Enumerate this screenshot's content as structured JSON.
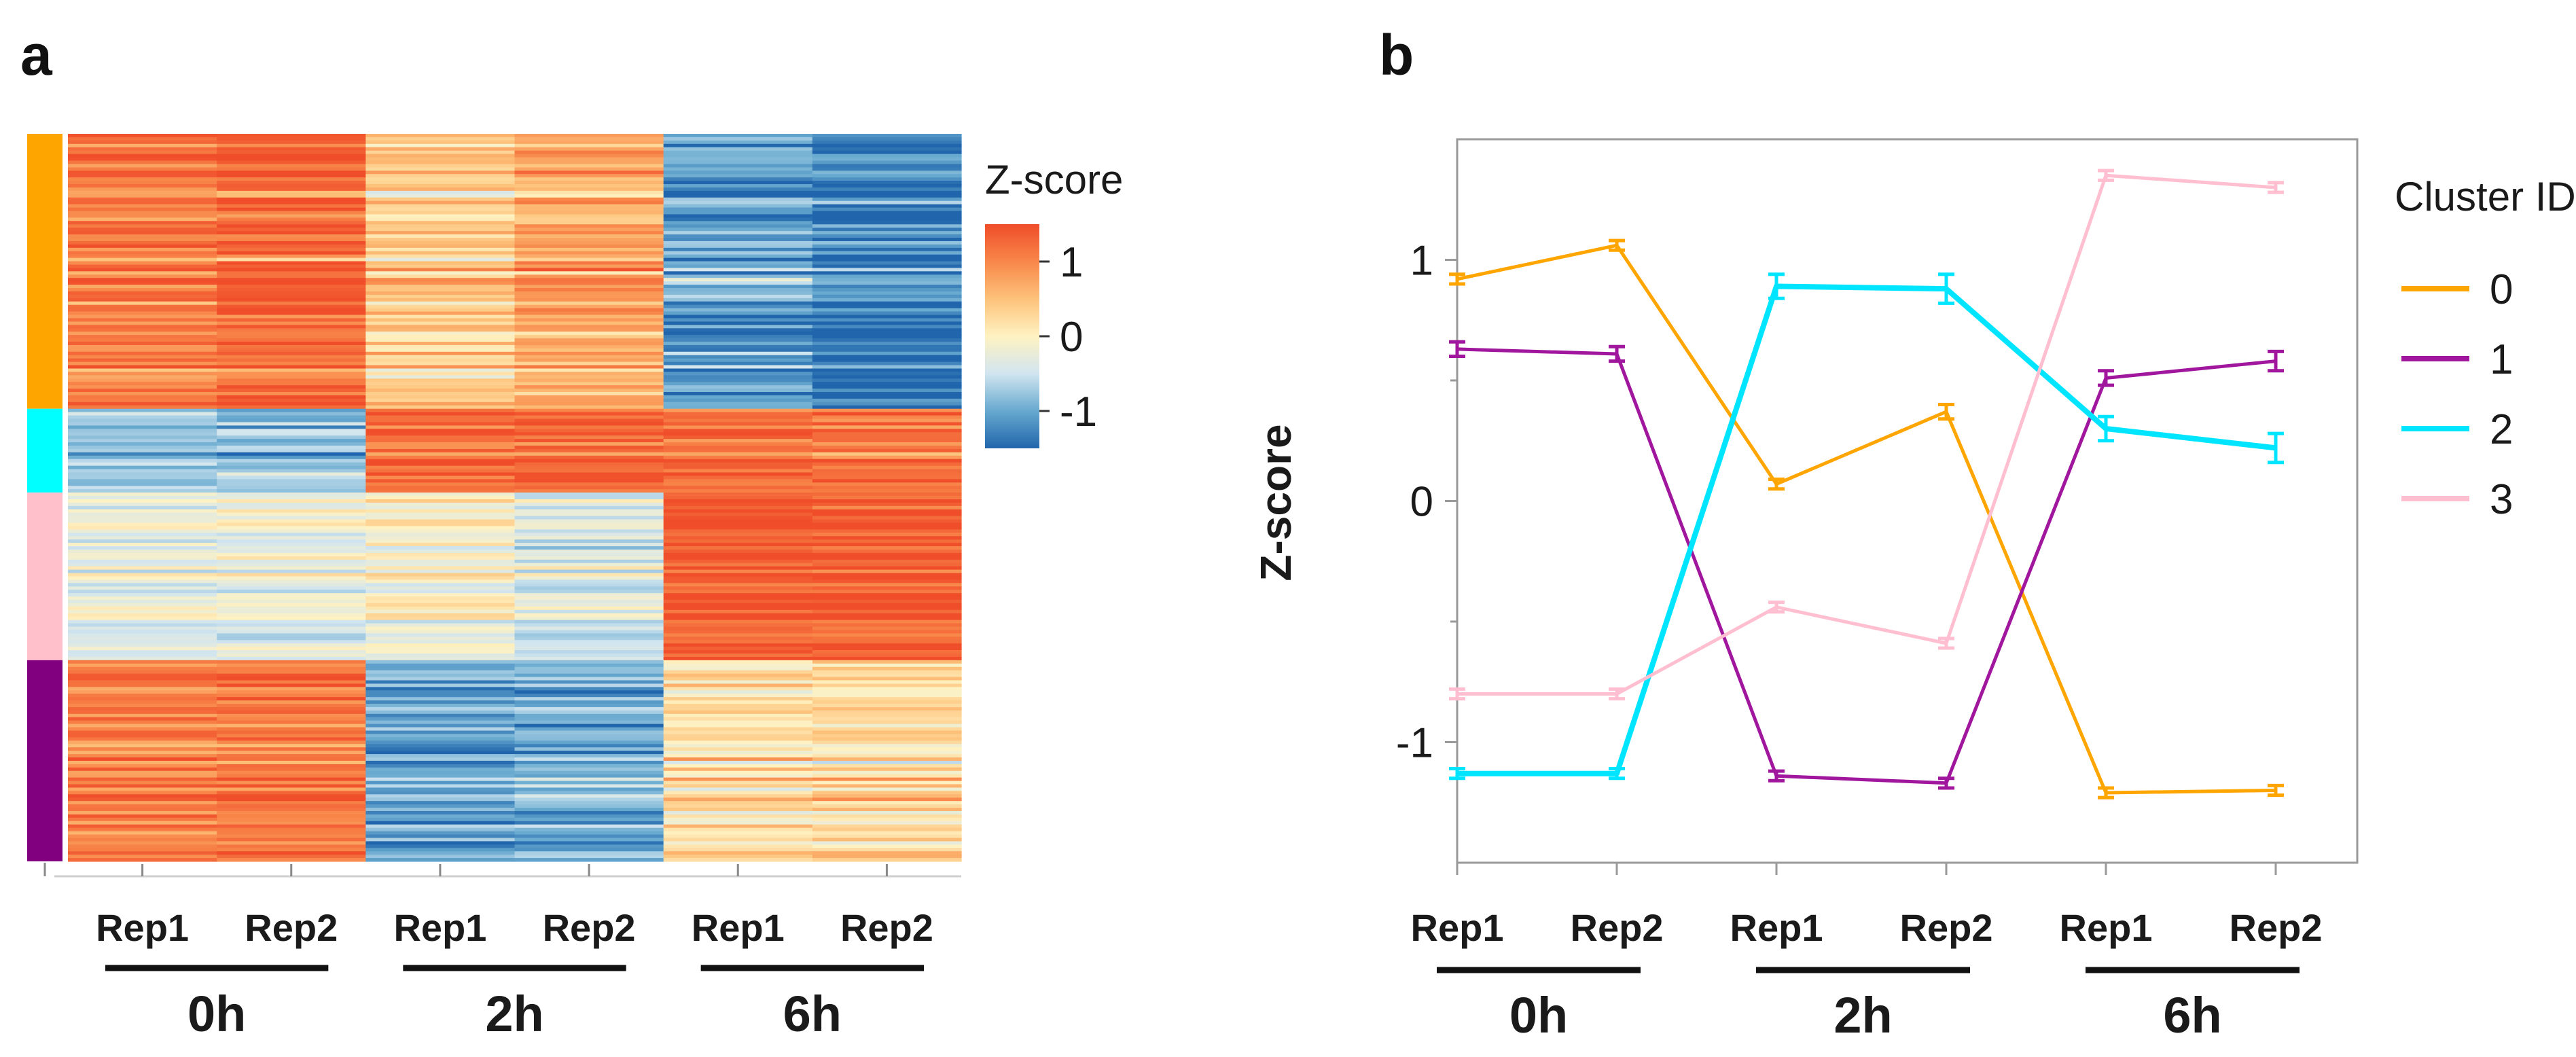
{
  "panels": {
    "a_label": "a",
    "b_label": "b"
  },
  "chart_data": [
    {
      "type": "heatmap",
      "panel": "a",
      "columns": [
        "Rep1",
        "Rep2",
        "Rep1",
        "Rep2",
        "Rep1",
        "Rep2"
      ],
      "groups": [
        {
          "label": "0h",
          "columns": [
            0,
            1
          ]
        },
        {
          "label": "2h",
          "columns": [
            2,
            3
          ]
        },
        {
          "label": "6h",
          "columns": [
            4,
            5
          ]
        }
      ],
      "row_clusters": [
        {
          "id": "0",
          "color": "#FFA500",
          "rows": 82,
          "means": [
            1.15,
            1.3,
            0.45,
            0.75,
            -1.0,
            -1.3
          ],
          "noise": 0.55
        },
        {
          "id": "2",
          "color": "#00FFFF",
          "rows": 25,
          "means": [
            -0.85,
            -0.9,
            1.15,
            1.2,
            1.1,
            1.05
          ],
          "noise": 0.5
        },
        {
          "id": "3",
          "color": "#FFC0CB",
          "rows": 50,
          "means": [
            -0.35,
            -0.35,
            -0.15,
            -0.45,
            1.35,
            1.35
          ],
          "noise": 0.45
        },
        {
          "id": "1",
          "color": "#800080",
          "rows": 60,
          "means": [
            1.1,
            1.15,
            -1.0,
            -0.9,
            0.25,
            0.3
          ],
          "noise": 0.5
        }
      ],
      "colorbar": {
        "title": "Z-score",
        "ticks": [
          "1",
          "0",
          "-1"
        ],
        "tick_values": [
          1,
          0,
          -1
        ],
        "range": [
          -1.5,
          1.5
        ],
        "colors": [
          "#2166AC",
          "#67A9CF",
          "#D1E5F0",
          "#FFF2C2",
          "#FDC27A",
          "#F8874A",
          "#F04D2A"
        ]
      }
    },
    {
      "type": "line",
      "panel": "b",
      "ylabel": "Z-score",
      "ylim": [
        -1.5,
        1.5
      ],
      "yticks": [
        1,
        0,
        -1
      ],
      "ytick_labels": [
        "1",
        "0",
        "-1"
      ],
      "x_labels": [
        "Rep1",
        "Rep2",
        "Rep1",
        "Rep2",
        "Rep1",
        "Rep2"
      ],
      "groups": [
        {
          "label": "0h",
          "columns": [
            0,
            1
          ]
        },
        {
          "label": "2h",
          "columns": [
            2,
            3
          ]
        },
        {
          "label": "6h",
          "columns": [
            4,
            5
          ]
        }
      ],
      "legend_title": "Cluster ID",
      "series": [
        {
          "name": "0",
          "color": "#FFA500",
          "values": [
            0.92,
            1.06,
            0.07,
            0.37,
            -1.21,
            -1.2
          ],
          "errors": [
            0.02,
            0.02,
            0.02,
            0.03,
            0.02,
            0.02
          ]
        },
        {
          "name": "1",
          "color": "#A0179E",
          "values": [
            0.63,
            0.61,
            -1.14,
            -1.17,
            0.51,
            0.58
          ],
          "errors": [
            0.03,
            0.03,
            0.02,
            0.02,
            0.03,
            0.04
          ]
        },
        {
          "name": "2",
          "color": "#00E5FF",
          "values": [
            -1.13,
            -1.13,
            0.89,
            0.88,
            0.3,
            0.22
          ],
          "errors": [
            0.02,
            0.02,
            0.05,
            0.06,
            0.05,
            0.06
          ]
        },
        {
          "name": "3",
          "color": "#FFBFD0",
          "values": [
            -0.8,
            -0.8,
            -0.44,
            -0.59,
            1.35,
            1.3
          ],
          "errors": [
            0.02,
            0.02,
            0.02,
            0.02,
            0.02,
            0.02
          ]
        }
      ]
    }
  ]
}
